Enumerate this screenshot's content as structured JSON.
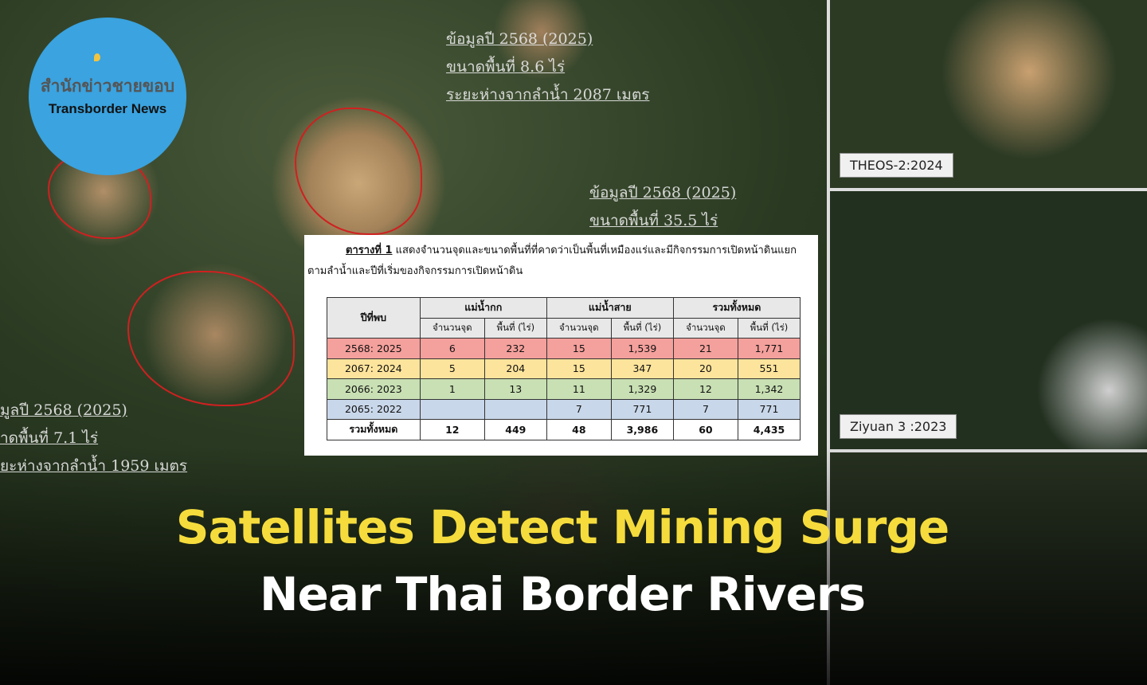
{
  "logo": {
    "thai": "สำนักข่าวชายขอบ",
    "english": "Transborder News"
  },
  "map_labels": [
    [
      "ข้อมูลปี 2568 (2025)",
      "ขนาดพื้นที่  8.6 ไร่",
      "ระยะห่างจากลำน้ำ 2087 เมตร"
    ],
    [
      "ข้อมูลปี 2568 (2025)",
      "ขนาดพื้นที่  35.5 ไร่"
    ],
    [
      "มูลปี 2568 (2025)",
      "าดพื้นที่  7.1 ไร่",
      "ยะห่างจากลำน้ำ 1959 เมตร"
    ]
  ],
  "side_panels": [
    {
      "label": "THEOS-2:2024"
    },
    {
      "label": "Ziyuan 3 :2023"
    }
  ],
  "table_doc": {
    "caption_title": "ตารางที่ 1",
    "caption_line1": "แสดงจำนวนจุดและขนาดพื้นที่ที่คาดว่าเป็นพื้นที่เหมืองแร่และมีกิจกรรมการเปิดหน้าดินแยก",
    "caption_line2": "ตามลำน้ำและปีที่เริ่มของกิจกรรมการเปิดหน้าดิน",
    "header_year": "ปีที่พบ",
    "groups": [
      "แม่น้ำกก",
      "แม่น้ำสาย",
      "รวมทั้งหมด"
    ],
    "sub_headers": [
      "จำนวนจุด",
      "พื้นที่ (ไร่)",
      "จำนวนจุด",
      "พื้นที่ (ไร่)",
      "จำนวนจุด",
      "พื้นที่ (ไร่)"
    ],
    "rows": [
      {
        "year": "2568: 2025",
        "values": [
          "6",
          "232",
          "15",
          "1,539",
          "21",
          "1,771"
        ],
        "color": "#f4a09c"
      },
      {
        "year": "2067: 2024",
        "values": [
          "5",
          "204",
          "15",
          "347",
          "20",
          "551"
        ],
        "color": "#fde49c"
      },
      {
        "year": "2066: 2023",
        "values": [
          "1",
          "13",
          "11",
          "1,329",
          "12",
          "1,342"
        ],
        "color": "#c8e0b3"
      },
      {
        "year": "2065: 2022",
        "values": [
          "",
          "",
          "7",
          "771",
          "7",
          "771"
        ],
        "color": "#c9d7ea"
      }
    ],
    "total": {
      "year": "รวมทั้งหมด",
      "values": [
        "12",
        "449",
        "48",
        "3,986",
        "60",
        "4,435"
      ]
    }
  },
  "headline": {
    "line1": "Satellites Detect Mining Surge",
    "line2": "Near Thai Border Rivers",
    "line1_color": "#f5dc3c",
    "line2_color": "#ffffff"
  }
}
